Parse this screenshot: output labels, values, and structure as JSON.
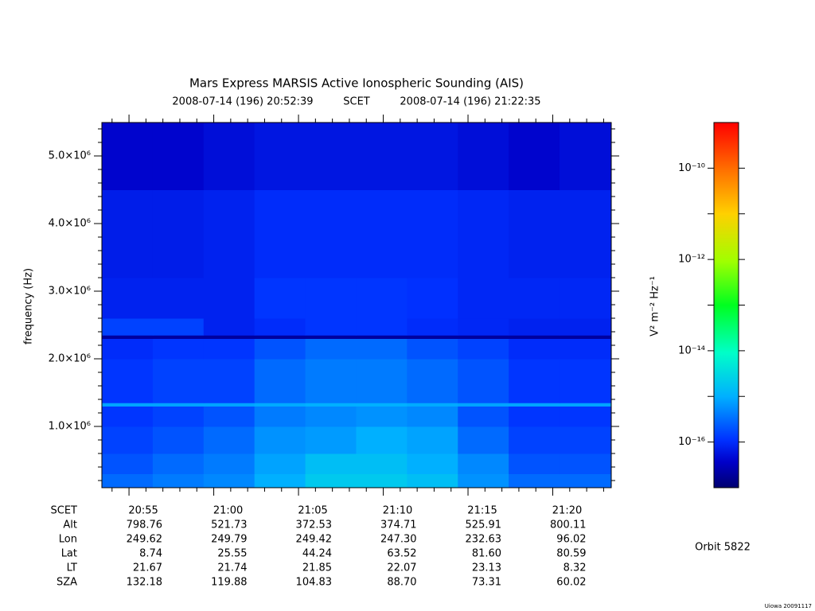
{
  "chart_data": {
    "type": "heatmap",
    "title": "Mars Express MARSIS Active Ionospheric Sounding (AIS)",
    "subtitle_start": "2008-07-14 (196) 20:52:39",
    "subtitle_scet": "SCET",
    "subtitle_end": "2008-07-14 (196) 21:22:35",
    "ylabel": "frequency (Hz)",
    "xlim": [
      1253.4,
      1283.45
    ],
    "ylim": [
      94000,
      5494000
    ],
    "xticks": [
      {
        "value": 1255,
        "label": "20:55"
      },
      {
        "value": 1260,
        "label": "21:00"
      },
      {
        "value": 1265,
        "label": "21:05"
      },
      {
        "value": 1270,
        "label": "21:10"
      },
      {
        "value": 1275,
        "label": "21:15"
      },
      {
        "value": 1280,
        "label": "21:20"
      }
    ],
    "xticks_minor": [
      1254,
      1256,
      1257,
      1258,
      1259,
      1261,
      1262,
      1263,
      1264,
      1266,
      1267,
      1268,
      1269,
      1271,
      1272,
      1273,
      1274,
      1276,
      1277,
      1278,
      1279,
      1281,
      1282,
      1283
    ],
    "yticks": [
      {
        "value": 1000000,
        "label": "1.0×10⁶"
      },
      {
        "value": 2000000,
        "label": "2.0×10⁶"
      },
      {
        "value": 3000000,
        "label": "3.0×10⁶"
      },
      {
        "value": 4000000,
        "label": "4.0×10⁶"
      },
      {
        "value": 5000000,
        "label": "5.0×10⁶"
      }
    ],
    "yticks_minor": [
      200000,
      400000,
      600000,
      800000,
      1200000,
      1400000,
      1600000,
      1800000,
      2200000,
      2400000,
      2600000,
      2800000,
      3200000,
      3400000,
      3600000,
      3800000,
      4200000,
      4400000,
      4600000,
      4800000,
      5200000,
      5400000
    ],
    "xbins": [
      1253.4,
      1256.4,
      1259.4,
      1262.4,
      1265.4,
      1268.4,
      1271.4,
      1274.4,
      1277.4,
      1280.4,
      1283.45
    ],
    "ybins": [
      94000,
      300000,
      600000,
      1000000,
      1300000,
      1350000,
      2000000,
      2300000,
      2350000,
      2600000,
      3200000,
      4500000,
      5494000
    ],
    "z": [
      [
        3e-16,
        4e-16,
        5e-16,
        1e-15,
        2e-15,
        2e-15,
        1.5e-15,
        6e-16,
        3e-16,
        3e-16
      ],
      [
        2e-16,
        3e-16,
        4e-16,
        8e-16,
        1.5e-15,
        1.5e-15,
        1e-15,
        5e-16,
        2e-16,
        2e-16
      ],
      [
        1.5e-16,
        2e-16,
        3e-16,
        6e-16,
        7e-16,
        1e-15,
        8e-16,
        3e-16,
        1.5e-16,
        1.5e-16
      ],
      [
        1.2e-16,
        1.5e-16,
        2e-16,
        4e-16,
        5e-16,
        6e-16,
        5e-16,
        2e-16,
        1.2e-16,
        1.2e-16
      ],
      [
        8e-16,
        8e-16,
        8e-16,
        9e-16,
        1e-15,
        1e-15,
        9e-16,
        8e-16,
        8e-16,
        8e-16
      ],
      [
        1.2e-16,
        1.5e-16,
        1.5e-16,
        3e-16,
        4e-16,
        4e-16,
        3e-16,
        2e-16,
        1.2e-16,
        1.2e-16
      ],
      [
        1e-16,
        1.2e-16,
        1.2e-16,
        2e-16,
        3e-16,
        3e-16,
        2e-16,
        1.5e-16,
        1e-16,
        1e-16
      ],
      [
        2e-17,
        2e-17,
        2e-17,
        2e-17,
        2e-17,
        2e-17,
        2e-17,
        2e-17,
        2e-17,
        2e-17
      ],
      [
        1.5e-16,
        1.5e-16,
        8e-17,
        1e-16,
        1.2e-16,
        1.2e-16,
        1e-16,
        9e-17,
        8e-17,
        8e-17
      ],
      [
        8e-17,
        8e-17,
        8e-17,
        1.2e-16,
        1.2e-16,
        1.2e-16,
        1.1e-16,
        9e-17,
        9e-17,
        9e-17
      ],
      [
        7e-17,
        7e-17,
        8e-17,
        1e-16,
        1e-16,
        1e-16,
        1e-16,
        9e-17,
        8e-17,
        8e-17
      ],
      [
        4e-17,
        4e-17,
        5e-17,
        6e-17,
        6e-17,
        6e-17,
        6e-17,
        5e-17,
        4e-17,
        5e-17
      ]
    ],
    "colorbar": {
      "label": "V² m⁻² Hz⁻¹",
      "zlim": [
        1e-17,
        1e-09
      ],
      "log": true,
      "ticks": [
        {
          "value": 1e-16,
          "label": "10⁻¹⁶"
        },
        {
          "value": 1e-14,
          "label": "10⁻¹⁴"
        },
        {
          "value": 1e-12,
          "label": "10⁻¹²"
        },
        {
          "value": 1e-10,
          "label": "10⁻¹⁰"
        }
      ],
      "ticks_minor": [
        1e-15,
        1e-13,
        1e-11
      ]
    },
    "ephemeris": {
      "time_label": "SCET",
      "rows": [
        {
          "name": "Alt",
          "values": [
            "798.76",
            "521.73",
            "372.53",
            "374.71",
            "525.91",
            "800.11"
          ]
        },
        {
          "name": "Lon",
          "values": [
            "249.62",
            "249.79",
            "249.42",
            "247.30",
            "232.63",
            "96.02"
          ]
        },
        {
          "name": "Lat",
          "values": [
            "8.74",
            "25.55",
            "44.24",
            "63.52",
            "81.60",
            "80.59"
          ]
        },
        {
          "name": "LT",
          "values": [
            "21.67",
            "21.74",
            "21.85",
            "22.07",
            "23.13",
            "8.32"
          ]
        },
        {
          "name": "SZA",
          "values": [
            "132.18",
            "119.88",
            "104.83",
            "88.70",
            "73.31",
            "60.02"
          ]
        }
      ]
    },
    "orbit": "Orbit 5822",
    "footer": "Uiowa 20091117"
  }
}
